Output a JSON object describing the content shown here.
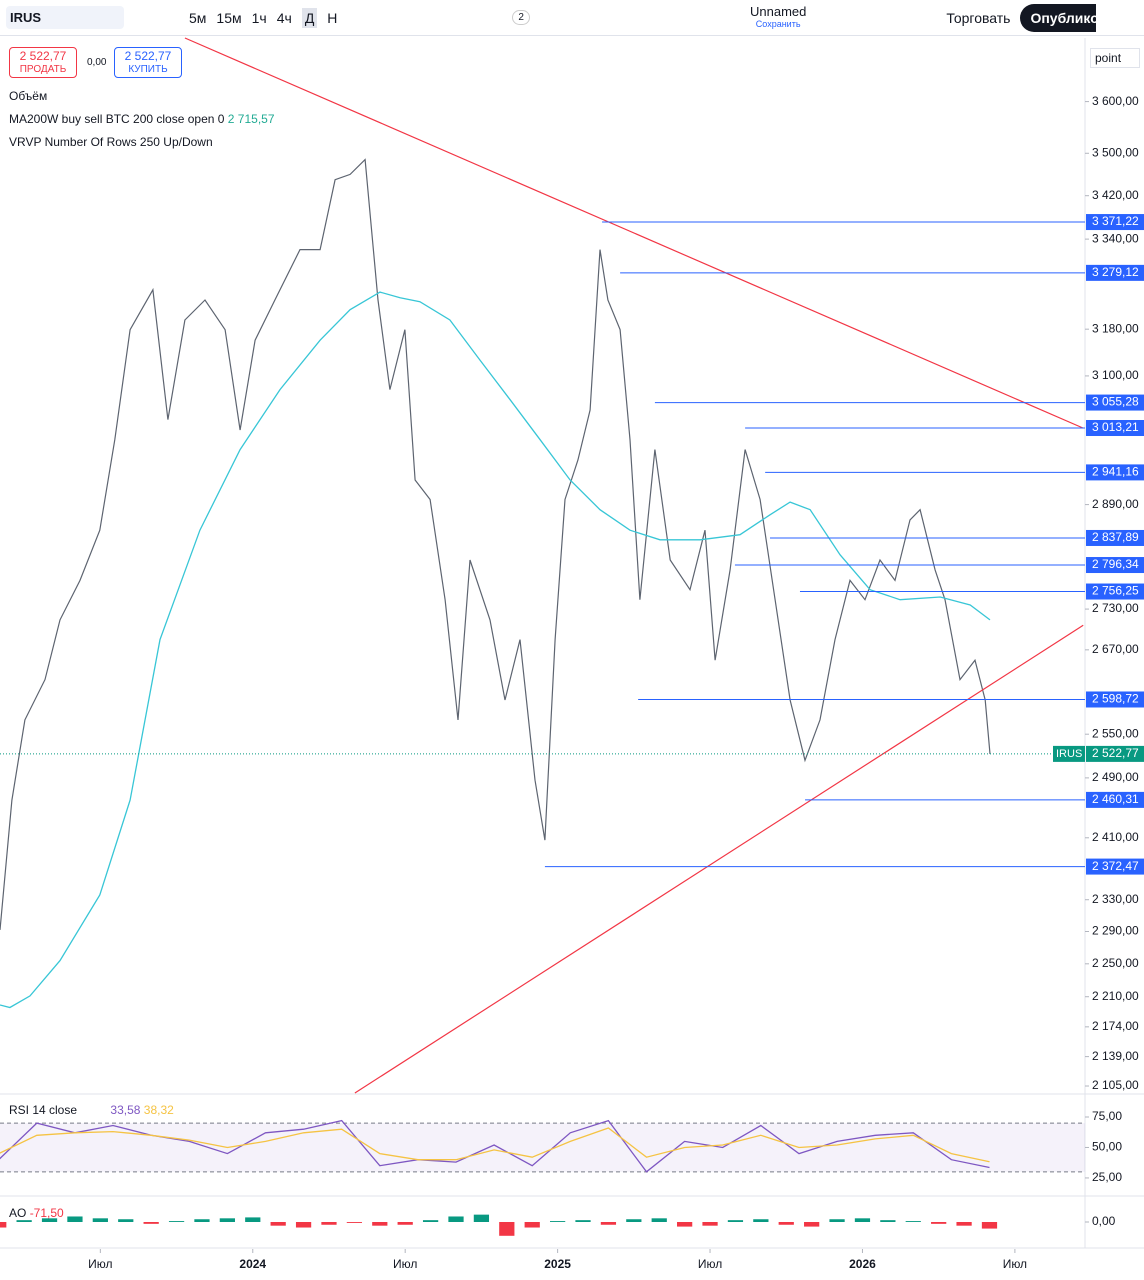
{
  "toolbar": {
    "symbol": "IRUS",
    "intervals": [
      "5м",
      "15м",
      "1ч",
      "4ч",
      "Д",
      "Н"
    ],
    "layouts": "2",
    "layout_name": "Unnamed",
    "save": "Сохранить",
    "trade": "Торговать",
    "publish": "Опублико"
  },
  "overlay": {
    "sell_price": "2 522,77",
    "sell": "ПРОДАТЬ",
    "spread": "0,00",
    "buy_price": "2 522,77",
    "buy": "КУПИТЬ",
    "volume": "Объём",
    "vrvp": "VRVP Number Of Rows 250 Up/Down",
    "scale_mode": "point"
  },
  "chart_data": [
    {
      "type": "line",
      "log_scale": true,
      "xlim": [
        2.05,
        44.76
      ],
      "ylim": [
        2097,
        3727
      ],
      "series": [
        {
          "name": "IRUS",
          "color": "#5d6470",
          "x": [
            2.05,
            2.52,
            3.03,
            3.82,
            4.41,
            5.2,
            5.98,
            6.57,
            7.17,
            8.07,
            8.66,
            9.33,
            10.12,
            10.91,
            11.5,
            12.09,
            12.87,
            13.86,
            14.65,
            15.24,
            15.83,
            16.42,
            16.93,
            17.4,
            17.99,
            18.39,
            18.98,
            19.57,
            20.08,
            20.55,
            21.34,
            21.93,
            22.52,
            23.11,
            23.5,
            23.9,
            24.29,
            24.8,
            25.28,
            25.67,
            25.98,
            26.46,
            26.85,
            27.24,
            27.83,
            28.43,
            29.21,
            29.8,
            30.2,
            30.79,
            31.38,
            31.97,
            32.56,
            33.15,
            33.74,
            34.33,
            34.92,
            35.51,
            36.1,
            36.69,
            37.28,
            37.87,
            38.27,
            38.86,
            39.25,
            39.84,
            40.43,
            40.83,
            41.02
          ],
          "values": [
            2292,
            2460,
            2570,
            2627,
            2714,
            2773,
            2850,
            2994,
            3179,
            3249,
            3027,
            3196,
            3231,
            3179,
            3010,
            3161,
            3231,
            3321,
            3321,
            3450,
            3460,
            3488,
            3231,
            3077,
            3179,
            2929,
            2898,
            2744,
            2570,
            2804,
            2714,
            2598,
            2685,
            2487,
            2407,
            2685,
            2898,
            2961,
            3043,
            3321,
            3231,
            3179,
            2994,
            2744,
            2978,
            2804,
            2759,
            2850,
            2655,
            2789,
            2978,
            2898,
            2744,
            2598,
            2514,
            2570,
            2685,
            2773,
            2744,
            2804,
            2773,
            2866,
            2882,
            2789,
            2744,
            2627,
            2655,
            2598,
            2522.77
          ]
        },
        {
          "name": "MA200W buy sell BTC 200 close open 0",
          "color": "#38c6d6",
          "x": [
            2.05,
            2.44,
            3.23,
            4.41,
            5.98,
            7.17,
            8.35,
            9.92,
            11.5,
            13.07,
            14.65,
            15.83,
            17.01,
            17.8,
            18.58,
            19.76,
            20.94,
            22.13,
            23.31,
            24.49,
            25.67,
            26.85,
            28.03,
            29.61,
            31.18,
            32.36,
            33.15,
            33.94,
            35.12,
            36.3,
            37.48,
            39.06,
            40.24,
            41.02
          ],
          "values": [
            2200,
            2197,
            2211,
            2254,
            2336,
            2460,
            2685,
            2850,
            2978,
            3077,
            3161,
            3214,
            3245,
            3235,
            3228,
            3196,
            3127,
            3060,
            2994,
            2929,
            2882,
            2850,
            2835,
            2835,
            2843,
            2874,
            2894,
            2882,
            2812,
            2759,
            2744,
            2748,
            2736,
            2714
          ]
        }
      ],
      "last_price": {
        "value": 2522.77,
        "label": "2 522,77"
      },
      "ma_last": {
        "value": 2715.57,
        "label": "2 715,57"
      },
      "level_color": "#2962ff",
      "levels": [
        {
          "value": 3371.22,
          "label": "3 371,22",
          "start": 25.75
        },
        {
          "value": 3279.12,
          "label": "3 279,12",
          "start": 26.46
        },
        {
          "value": 3055.28,
          "label": "3 055,28",
          "start": 27.83
        },
        {
          "value": 3013.21,
          "label": "3 013,21",
          "start": 31.38
        },
        {
          "value": 2941.16,
          "label": "2 941,16",
          "start": 32.17
        },
        {
          "value": 2837.89,
          "label": "2 837,89",
          "start": 32.36
        },
        {
          "value": 2796.34,
          "label": "2 796,34",
          "start": 30.98
        },
        {
          "value": 2756.25,
          "label": "2 756,25",
          "start": 33.54
        },
        {
          "value": 2598.72,
          "label": "2 598,72",
          "start": 27.17
        },
        {
          "value": 2460.31,
          "label": "2 460,31",
          "start": 33.74
        },
        {
          "value": 2372.47,
          "label": "2 372,47",
          "start": 23.5
        }
      ],
      "trend_color": "#f23645",
      "trendlines": [
        {
          "x": [
            9.33,
            44.69
          ],
          "y": [
            3727,
            3013
          ]
        },
        {
          "x": [
            16.02,
            44.69
          ],
          "y": [
            2097,
            2706
          ]
        }
      ],
      "yticks": [
        {
          "value": 3600,
          "label": "3 600,00"
        },
        {
          "value": 3500,
          "label": "3 500,00"
        },
        {
          "value": 3420,
          "label": "3 420,00"
        },
        {
          "value": 3340,
          "label": "3 340,00"
        },
        {
          "value": 3180,
          "label": "3 180,00"
        },
        {
          "value": 3100,
          "label": "3 100,00"
        },
        {
          "value": 2890,
          "label": "2 890,00"
        },
        {
          "value": 2730,
          "label": "2 730,00"
        },
        {
          "value": 2670,
          "label": "2 670,00"
        },
        {
          "value": 2550,
          "label": "2 550,00"
        },
        {
          "value": 2490,
          "label": "2 490,00"
        },
        {
          "value": 2410,
          "label": "2 410,00"
        },
        {
          "value": 2330,
          "label": "2 330,00"
        },
        {
          "value": 2290,
          "label": "2 290,00"
        },
        {
          "value": 2250,
          "label": "2 250,00"
        },
        {
          "value": 2210,
          "label": "2 210,00"
        },
        {
          "value": 2174,
          "label": "2 174,00"
        },
        {
          "value": 2139,
          "label": "2 139,00"
        },
        {
          "value": 2105,
          "label": "2 105,00"
        }
      ],
      "xticks": [
        {
          "value": 6,
          "label": "Июл"
        },
        {
          "value": 12,
          "label": "2024"
        },
        {
          "value": 18,
          "label": "Июл"
        },
        {
          "value": 24,
          "label": "2025"
        },
        {
          "value": 30,
          "label": "Июл"
        },
        {
          "value": 36,
          "label": "2026"
        },
        {
          "value": 42,
          "label": "Июл"
        }
      ]
    },
    {
      "type": "line",
      "title": "RSI 14 close",
      "ylim": [
        11,
        91.4
      ],
      "band": [
        30,
        70
      ],
      "yticks": [
        {
          "value": 75,
          "label": "75,00"
        },
        {
          "value": 50,
          "label": "50,00"
        },
        {
          "value": 25,
          "label": "25,00"
        }
      ],
      "series": [
        {
          "name": "RSI",
          "color": "#7e57c2",
          "value_label": "33,58",
          "x": [
            2,
            3.5,
            5,
            6.5,
            8,
            9.5,
            11,
            12.5,
            14,
            15.5,
            17,
            18.5,
            20,
            21.5,
            23,
            24.5,
            26,
            27.5,
            29,
            30.5,
            32,
            33.5,
            35,
            36.5,
            38,
            39.5,
            41
          ],
          "values": [
            40,
            70,
            62,
            68,
            60,
            55,
            45,
            62,
            65,
            72,
            35,
            40,
            38,
            52,
            35,
            62,
            72,
            30,
            55,
            50,
            68,
            45,
            55,
            60,
            62,
            40,
            33.58
          ]
        },
        {
          "name": "Signal",
          "color": "#f5c343",
          "value_label": "38,32",
          "x": [
            2,
            3.5,
            5,
            6.5,
            8,
            9.5,
            11,
            12.5,
            14,
            15.5,
            17,
            18.5,
            20,
            21.5,
            23,
            24.5,
            26,
            27.5,
            29,
            30.5,
            32,
            33.5,
            35,
            36.5,
            38,
            39.5,
            41
          ],
          "values": [
            45,
            60,
            62,
            63,
            60,
            56,
            50,
            55,
            62,
            65,
            45,
            40,
            40,
            48,
            42,
            55,
            66,
            42,
            50,
            52,
            60,
            50,
            52,
            57,
            60,
            45,
            38.32
          ]
        }
      ]
    },
    {
      "type": "bar",
      "title": "AO",
      "value_label": "-71,50",
      "ylim": [
        -250,
        250
      ],
      "up_color": "#089981",
      "down_color": "#f23645",
      "yticks": [
        {
          "value": 0,
          "label": "0,00"
        }
      ],
      "x": [
        2,
        3,
        4,
        5,
        6,
        7,
        8,
        9,
        10,
        11,
        12,
        13,
        14,
        15,
        16,
        17,
        18,
        19,
        20,
        21,
        22,
        23,
        24,
        25,
        26,
        27,
        28,
        29,
        30,
        31,
        32,
        33,
        34,
        35,
        36,
        37,
        38,
        39,
        40,
        41
      ],
      "values": [
        -60,
        20,
        40,
        60,
        40,
        30,
        -20,
        10,
        30,
        40,
        50,
        -40,
        -60,
        -30,
        -10,
        -40,
        -30,
        20,
        60,
        80,
        -150,
        -60,
        10,
        20,
        -30,
        30,
        40,
        -50,
        -40,
        20,
        30,
        -30,
        -50,
        30,
        40,
        20,
        10,
        -20,
        -40,
        -71.5
      ]
    }
  ]
}
